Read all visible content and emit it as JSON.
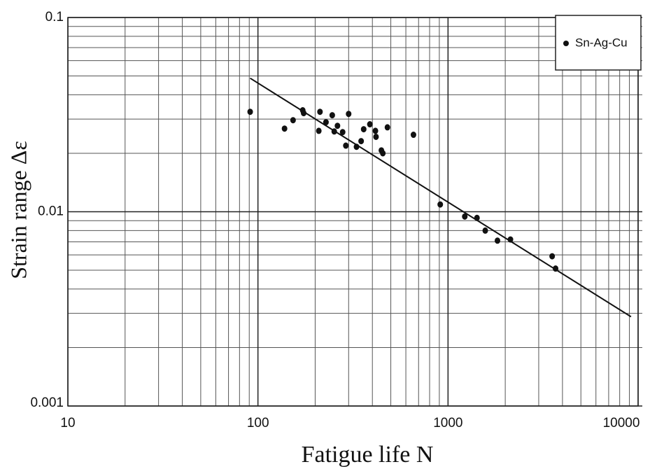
{
  "chart_data": {
    "type": "scatter",
    "xlabel": "Fatigue life N",
    "ylabel": "Strain range  Δε",
    "xscale": "log",
    "yscale": "log",
    "xlim": [
      10,
      10000
    ],
    "ylim": [
      0.001,
      0.1
    ],
    "xticks": [
      10,
      100,
      1000,
      10000
    ],
    "yticks": [
      0.001,
      0.01,
      0.1
    ],
    "grid": true,
    "minor_grid": true,
    "legend": "upper right",
    "series": [
      {
        "name": "Sn-Ag-Cu",
        "color": "#111111",
        "x": [
          91,
          138,
          153,
          172,
          174,
          209,
          212,
          228,
          246,
          252,
          262,
          279,
          290,
          300,
          330,
          349,
          360,
          388,
          415,
          418,
          446,
          454,
          480,
          658,
          910,
          1225,
          1420,
          1570,
          1820,
          2130,
          3530,
          3680
        ],
        "values": [
          0.0327,
          0.0268,
          0.0296,
          0.0333,
          0.0322,
          0.0261,
          0.0327,
          0.0289,
          0.0314,
          0.0259,
          0.0277,
          0.0257,
          0.0219,
          0.0319,
          0.0216,
          0.0231,
          0.0266,
          0.0282,
          0.0261,
          0.0243,
          0.0207,
          0.02,
          0.0272,
          0.0249,
          0.0109,
          0.00945,
          0.0093,
          0.008,
          0.0071,
          0.0072,
          0.0059,
          0.0051
        ]
      }
    ],
    "fit_line": {
      "color": "#111111",
      "x": [
        91,
        9180
      ],
      "values": [
        0.0487,
        0.00288
      ]
    }
  }
}
